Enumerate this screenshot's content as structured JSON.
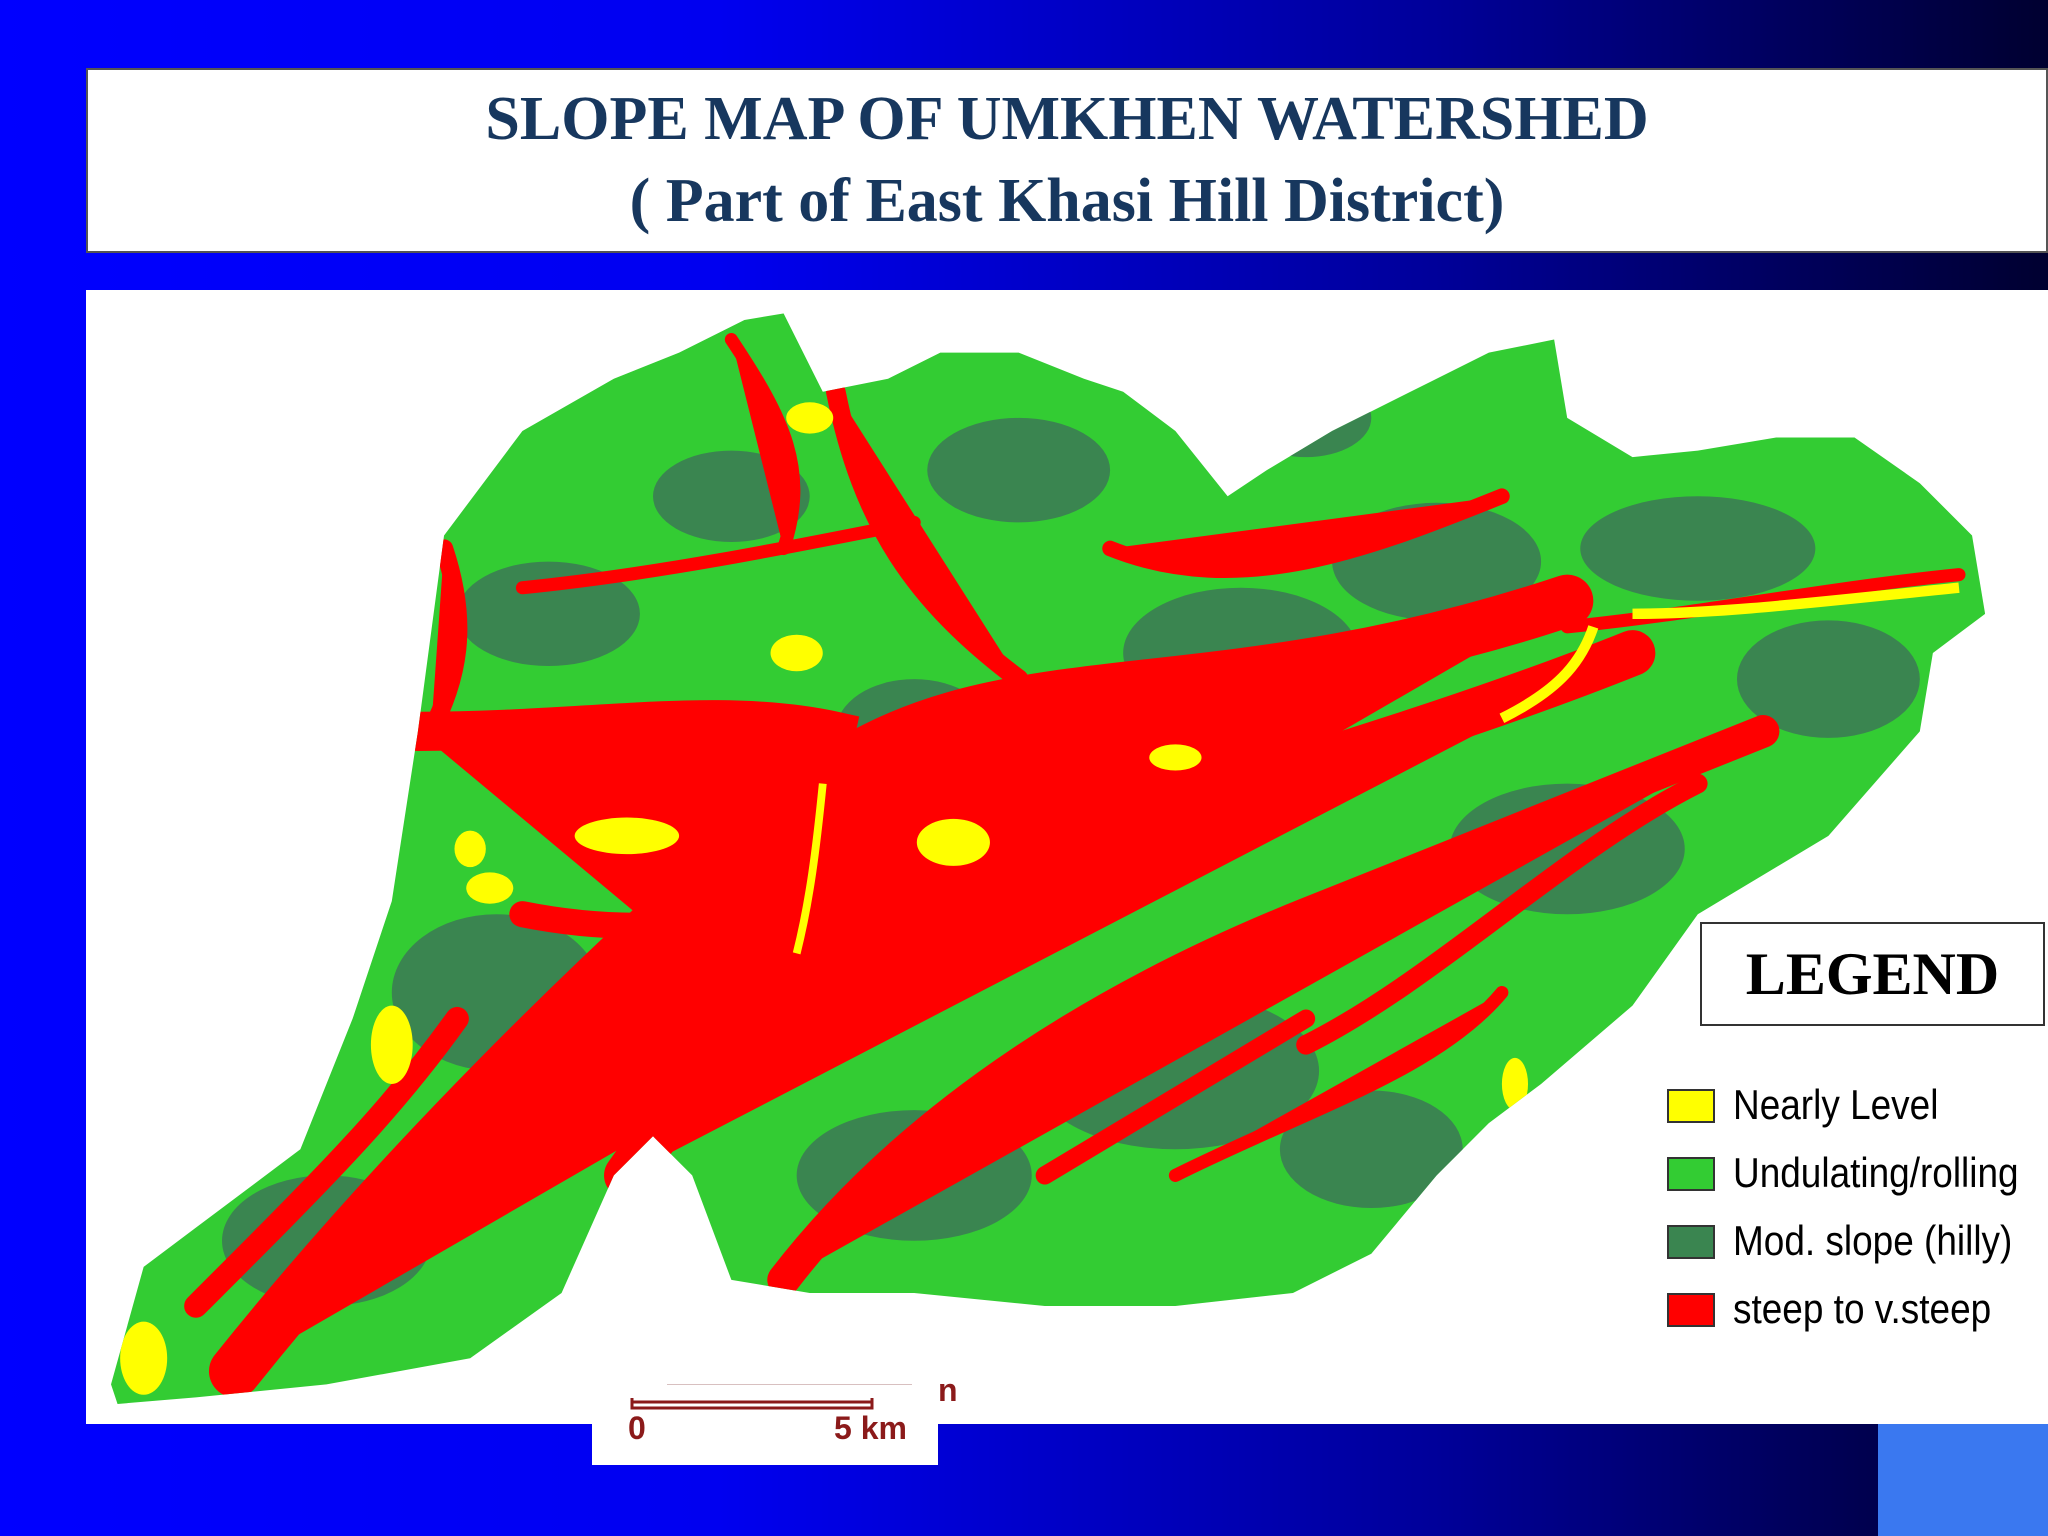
{
  "header": {
    "title": "SLOPE MAP OF UMKHEN WATERSHED",
    "subtitle": "( Part of East Khasi Hill District)"
  },
  "legend": {
    "title": "LEGEND",
    "items": [
      {
        "label": "Nearly Level",
        "color": "#ffff00"
      },
      {
        "label": "Undulating/rolling",
        "color": "#33cc33"
      },
      {
        "label": "Mod. slope (hilly)",
        "color": "#3a8550"
      },
      {
        "label": "steep to v.steep",
        "color": "#ff0000"
      }
    ]
  },
  "scale_bar": {
    "start": "0",
    "end": "5 km",
    "fragment": "n"
  }
}
